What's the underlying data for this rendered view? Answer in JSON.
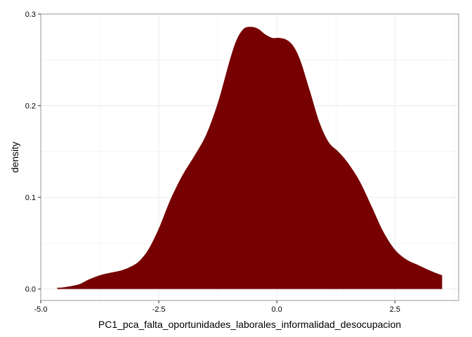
{
  "chart_data": {
    "type": "area",
    "title": "",
    "xlabel": "PC1_pca_falta_oportunidades_laborales_informalidad_desocupacion",
    "ylabel": "density",
    "xlim": [
      -5.0,
      3.85
    ],
    "ylim": [
      -0.0125,
      0.3
    ],
    "x_ticks": [
      -5.0,
      -2.5,
      0.0,
      2.5
    ],
    "x_tick_labels": [
      "-5.0",
      "-2.5",
      "0.0",
      "2.5"
    ],
    "y_ticks": [
      0.0,
      0.1,
      0.2,
      0.3
    ],
    "y_tick_labels": [
      "0.0",
      "0.1",
      "0.2",
      "0.3"
    ],
    "grid": true,
    "fill_color": "#770000",
    "grid_color": "#ebebeb",
    "border_color": "#7f7f7f",
    "series": [
      {
        "x": [
          -4.65,
          -4.5,
          -4.2,
          -4.0,
          -3.75,
          -3.5,
          -3.25,
          -3.0,
          -2.85,
          -2.7,
          -2.5,
          -2.25,
          -2.0,
          -1.75,
          -1.5,
          -1.25,
          -1.0,
          -0.85,
          -0.7,
          -0.55,
          -0.4,
          -0.25,
          -0.1,
          0.05,
          0.2,
          0.35,
          0.5,
          0.7,
          0.9,
          1.1,
          1.3,
          1.5,
          1.75,
          2.0,
          2.25,
          2.5,
          2.75,
          3.0,
          3.25,
          3.5
        ],
        "y": [
          0.0015,
          0.002,
          0.005,
          0.01,
          0.015,
          0.018,
          0.021,
          0.027,
          0.034,
          0.045,
          0.066,
          0.098,
          0.124,
          0.145,
          0.168,
          0.203,
          0.249,
          0.272,
          0.284,
          0.286,
          0.284,
          0.278,
          0.274,
          0.274,
          0.272,
          0.265,
          0.249,
          0.216,
          0.182,
          0.16,
          0.15,
          0.138,
          0.118,
          0.091,
          0.063,
          0.043,
          0.032,
          0.026,
          0.02,
          0.015
        ]
      }
    ]
  }
}
